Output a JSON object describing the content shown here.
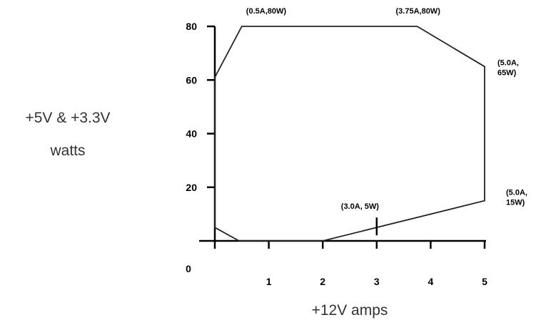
{
  "chart_data": {
    "type": "line",
    "title": "",
    "xlabel": "+12V amps",
    "ylabel_lines": [
      "+5V & +3.3V",
      "watts"
    ],
    "xlim": [
      0,
      5
    ],
    "ylim": [
      0,
      80
    ],
    "origin_label": "0",
    "x_ticks": [
      "1",
      "2",
      "3",
      "4",
      "5"
    ],
    "y_ticks": [
      "20",
      "40",
      "60",
      "80"
    ],
    "series": [
      {
        "values": [
          [
            0,
            61
          ],
          [
            0.5,
            80
          ],
          [
            3.75,
            80
          ],
          [
            5.0,
            65
          ],
          [
            5.0,
            15
          ],
          [
            2.0,
            0
          ],
          [
            0.45,
            0
          ],
          [
            0,
            5
          ]
        ]
      }
    ],
    "annotations": [
      {
        "lines": [
          "(0.5A,80W)"
        ],
        "at": [
          0.5,
          80
        ]
      },
      {
        "lines": [
          "(3.75A,80W)"
        ],
        "at": [
          3.75,
          80
        ]
      },
      {
        "lines": [
          "(5.0A,",
          "65W)"
        ],
        "at": [
          5.0,
          65
        ]
      },
      {
        "lines": [
          "(5.0A,",
          "15W)"
        ],
        "at": [
          5.0,
          15
        ]
      },
      {
        "lines": [
          "(3.0A, 5W)"
        ],
        "at": [
          3.0,
          5
        ]
      }
    ],
    "grid": false
  }
}
